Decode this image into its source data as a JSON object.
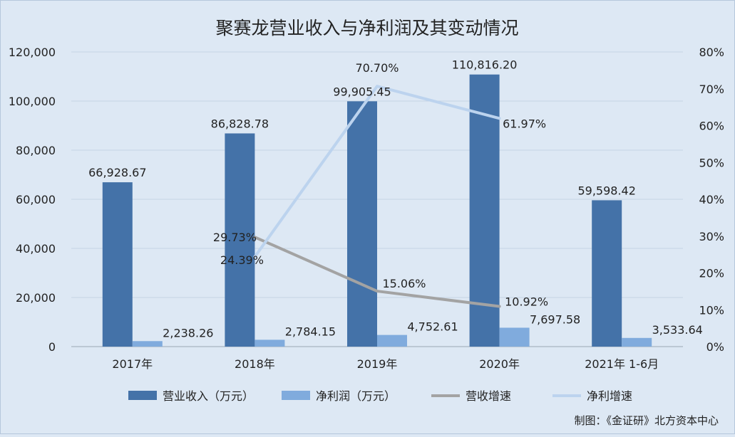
{
  "chart_data": {
    "type": "bar",
    "title": "聚赛龙营业收入与净利润及其变动情况",
    "categories": [
      "2017年",
      "2018年",
      "2019年",
      "2020年",
      "2021年 1-6月"
    ],
    "y_left": {
      "ticks": [
        "0",
        "20,000",
        "40,000",
        "60,000",
        "80,000",
        "100,000",
        "120,000"
      ],
      "range": [
        0,
        120000
      ]
    },
    "y_right": {
      "ticks": [
        "0%",
        "10%",
        "20%",
        "30%",
        "40%",
        "50%",
        "60%",
        "70%",
        "80%"
      ],
      "range": [
        0,
        80
      ]
    },
    "series": [
      {
        "name": "营业收入（万元）",
        "kind": "bar",
        "axis": "left",
        "color": "#4472a8",
        "values": [
          66928.67,
          86828.78,
          99905.45,
          110816.2,
          59598.42
        ],
        "labels": [
          "66,928.67",
          "86,828.78",
          "99,905.45",
          "110,816.20",
          "59,598.42"
        ]
      },
      {
        "name": "净利润（万元）",
        "kind": "bar",
        "axis": "left",
        "color": "#80abdd",
        "values": [
          2238.26,
          2784.15,
          4752.61,
          7697.58,
          3533.64
        ],
        "labels": [
          "2,238.26",
          "2,784.15",
          "4,752.61",
          "7,697.58",
          "3,533.64"
        ]
      },
      {
        "name": "营收增速",
        "kind": "line",
        "axis": "right",
        "color": "#a3a3a3",
        "values": [
          null,
          29.73,
          15.06,
          10.92,
          null
        ],
        "labels": [
          null,
          "29.73%",
          "15.06%",
          "10.92%",
          null
        ]
      },
      {
        "name": "净利增速",
        "kind": "line",
        "axis": "right",
        "color": "#bcd3ee",
        "values": [
          null,
          24.39,
          70.7,
          61.97,
          null
        ],
        "labels": [
          null,
          "24.39%",
          "70.70%",
          "61.97%",
          null
        ]
      }
    ],
    "legend_position": "bottom",
    "grid": true
  },
  "source_note": "制图：《金证研》北方资本中心"
}
